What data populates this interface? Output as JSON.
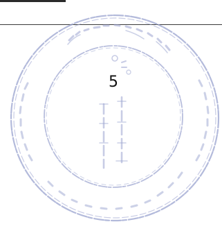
{
  "page": {
    "number": "5"
  },
  "stamp": {
    "description_icon": "circular-seal-stamp-icon",
    "ink_color": "#9aa3cf"
  },
  "colors": {
    "background": "#ffffff",
    "rule": "#3a3a3a",
    "text": "#111111"
  }
}
